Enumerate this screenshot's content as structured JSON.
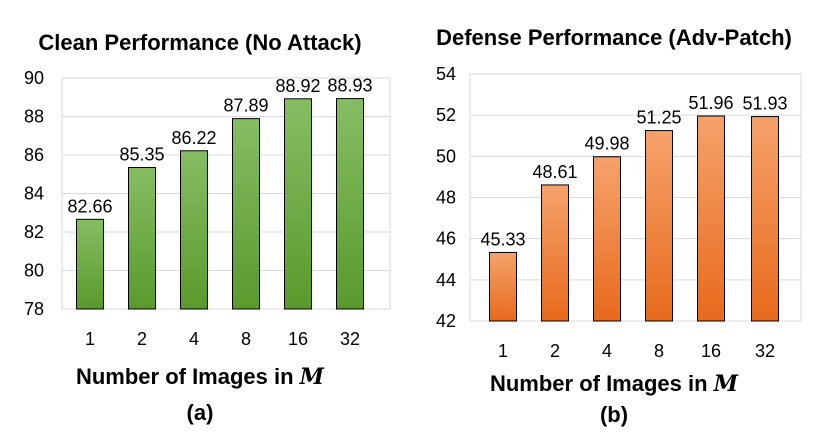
{
  "chart_data": [
    {
      "type": "bar",
      "title": "Clean Performance (No Attack)",
      "categories": [
        "1",
        "2",
        "4",
        "8",
        "16",
        "32"
      ],
      "values": [
        82.66,
        85.35,
        86.22,
        87.89,
        88.92,
        88.93
      ],
      "value_labels": [
        "82.66",
        "85.35",
        "86.22",
        "87.89",
        "88.92",
        "88.93"
      ],
      "xlabel_text": "Number of Images in ",
      "xlabel_symbol": "M",
      "caption": "(a)",
      "ylim": [
        78,
        90
      ],
      "yticks": [
        "78",
        "80",
        "82",
        "84",
        "86",
        "88",
        "90"
      ],
      "color_top": "#86bd63",
      "color_bottom": "#5a9a2c",
      "stroke": "#000000"
    },
    {
      "type": "bar",
      "title": "Defense Performance (Adv-Patch)",
      "categories": [
        "1",
        "2",
        "4",
        "8",
        "16",
        "32"
      ],
      "values": [
        45.33,
        48.61,
        49.98,
        51.25,
        51.96,
        51.93
      ],
      "value_labels": [
        "45.33",
        "48.61",
        "49.98",
        "51.25",
        "51.96",
        "51.93"
      ],
      "xlabel_text": "Number of Images in ",
      "xlabel_symbol": "M",
      "caption": "(b)",
      "ylim": [
        42,
        54
      ],
      "yticks": [
        "42",
        "44",
        "46",
        "48",
        "50",
        "52",
        "54"
      ],
      "color_top": "#f5a26b",
      "color_bottom": "#e86a1c",
      "stroke": "#000000"
    }
  ]
}
